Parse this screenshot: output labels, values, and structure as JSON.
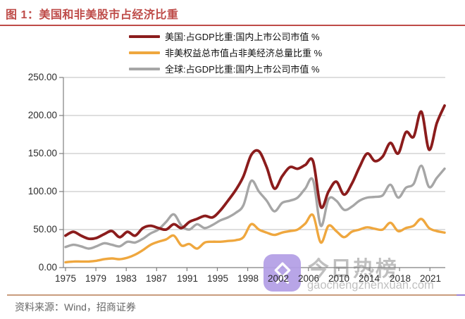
{
  "title": "图 1：美国和非美股市占经济比重",
  "legend": {
    "items": [
      {
        "label": "美国:占GDP比重:国内上市公司市值 %",
        "color": "#8B1C1C"
      },
      {
        "label": "非美权益总市值占非美经济总量比重 %",
        "color": "#EFA73E"
      },
      {
        "label": "全球:占GDP比重:国内上市公司市值 %",
        "color": "#A6A6A6"
      }
    ]
  },
  "axes": {
    "y_ticks": [
      "250.00",
      "200.00",
      "150.00",
      "100.00",
      "50.00",
      "0.00"
    ],
    "x_ticks": [
      "1975",
      "1979",
      "1983",
      "1987",
      "1991",
      "1995",
      "1998",
      "2002",
      "2006",
      "2010",
      "2014",
      "2018",
      "2021"
    ]
  },
  "chart_data": {
    "type": "line",
    "title": "图 1：美国和非美股市占经济比重",
    "ylabel": "",
    "xlabel": "",
    "ylim": [
      0,
      250
    ],
    "y_tick_step": 50,
    "grid": "horizontal",
    "legend_position": "top-center",
    "years": [
      1975,
      1976,
      1977,
      1978,
      1979,
      1980,
      1981,
      1982,
      1983,
      1984,
      1985,
      1986,
      1987,
      1988,
      1989,
      1990,
      1991,
      1992,
      1993,
      1994,
      1995,
      1996,
      1997,
      1998,
      1999,
      2000,
      2001,
      2002,
      2003,
      2004,
      2005,
      2006,
      2007,
      2008,
      2009,
      2010,
      2011,
      2012,
      2013,
      2014,
      2015,
      2016,
      2017,
      2018,
      2019,
      2020,
      2021,
      2022,
      2023,
      2024
    ],
    "series": [
      {
        "name": "美国:占GDP比重:国内上市公司市值 %",
        "color": "#8B1C1C",
        "values": [
          42,
          47,
          42,
          38,
          39,
          44,
          48,
          40,
          47,
          42,
          52,
          55,
          52,
          50,
          57,
          52,
          60,
          64,
          68,
          66,
          75,
          88,
          102,
          120,
          148,
          153,
          132,
          104,
          120,
          132,
          130,
          135,
          140,
          80,
          100,
          113,
          96,
          110,
          132,
          150,
          140,
          146,
          164,
          150,
          178,
          172,
          205,
          155,
          190,
          213
        ]
      },
      {
        "name": "非美权益总市值占非美经济总量比重 %",
        "color": "#EFA73E",
        "values": [
          7,
          8,
          8,
          8,
          9,
          11,
          12,
          11,
          13,
          17,
          23,
          30,
          34,
          37,
          42,
          29,
          31,
          25,
          33,
          34,
          34,
          35,
          36,
          40,
          57,
          50,
          46,
          43,
          46,
          48,
          50,
          58,
          69,
          33,
          55,
          48,
          40,
          47,
          50,
          53,
          51,
          50,
          59,
          48,
          52,
          55,
          64,
          52,
          48,
          46
        ]
      },
      {
        "name": "全球:占GDP比重:国内上市公司市值 %",
        "color": "#A6A6A6",
        "values": [
          27,
          30,
          28,
          25,
          28,
          32,
          30,
          28,
          34,
          33,
          38,
          45,
          50,
          60,
          70,
          55,
          50,
          57,
          52,
          56,
          62,
          66,
          72,
          82,
          114,
          100,
          88,
          74,
          85,
          88,
          92,
          104,
          115,
          55,
          90,
          88,
          76,
          80,
          88,
          92,
          93,
          95,
          109,
          92,
          105,
          110,
          134,
          106,
          118,
          130
        ]
      }
    ]
  },
  "source": {
    "label": "资料来源：Wind，招商证券"
  },
  "watermark": {
    "title": "今日热榜",
    "url": "gaochengzhenxuan.com"
  },
  "colors": {
    "title": "#BE4B48",
    "top_rule": "#BE4B48",
    "bottom_rule": "#C99C7D",
    "bottom_rule_accent": "#9B7FD4",
    "axis": "#7F7F7F",
    "gridline": "#BDBDBD",
    "watermark_badge": "rgba(178,157,229,0.92)"
  }
}
